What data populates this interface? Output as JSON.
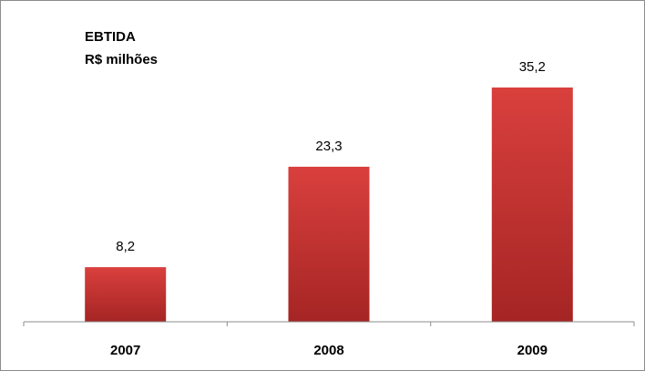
{
  "chart_data": {
    "type": "bar",
    "title": "EBTIDA",
    "subtitle": "R$ milhões",
    "categories": [
      "2007",
      "2008",
      "2009"
    ],
    "values": [
      8.2,
      23.3,
      35.2
    ],
    "data_labels": [
      "8,2",
      "23,3",
      "35,2"
    ],
    "xlabel": "",
    "ylabel": "",
    "ylim": [
      0,
      40
    ],
    "grid": false,
    "legend": "none",
    "bar_color": "#c0302f",
    "bar_color_light": "#d9403d",
    "bar_color_dark": "#a52524",
    "axis_color": "#8c8c8c"
  }
}
